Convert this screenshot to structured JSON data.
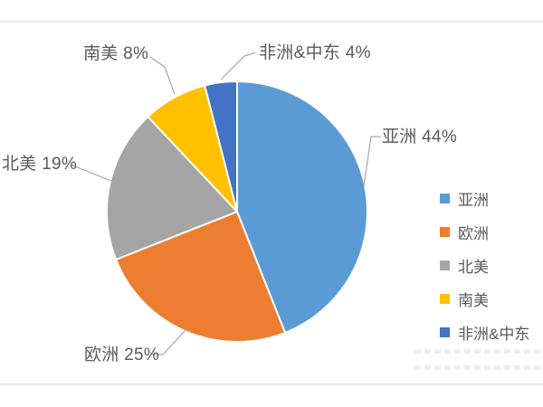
{
  "chart_data": {
    "type": "pie",
    "legend_position": "right",
    "start_angle_deg": 0,
    "direction": "clockwise",
    "slices": [
      {
        "id": "asia",
        "name": "亚洲",
        "value": 44,
        "label": "亚洲 44%",
        "color": "#5B9BD5"
      },
      {
        "id": "europe",
        "name": "欧洲",
        "value": 25,
        "label": "欧洲 25%",
        "color": "#ED7D31"
      },
      {
        "id": "north-america",
        "name": "北美",
        "value": 19,
        "label": "北美 19%",
        "color": "#A5A5A5"
      },
      {
        "id": "south-america",
        "name": "南美",
        "value": 8,
        "label": "南美 8%",
        "color": "#FFC000"
      },
      {
        "id": "africa-middle-east",
        "name": "非洲&中东",
        "value": 4,
        "label": "非洲&中东 4%",
        "color": "#4472C4"
      }
    ],
    "label_text_color": "#595959",
    "leader_line_color": "#A6A6A6",
    "slice_border_color": "#FFFFFF"
  },
  "frame": {
    "divider_color": "#E6E6EA",
    "background_color": "#FFFFFF"
  }
}
